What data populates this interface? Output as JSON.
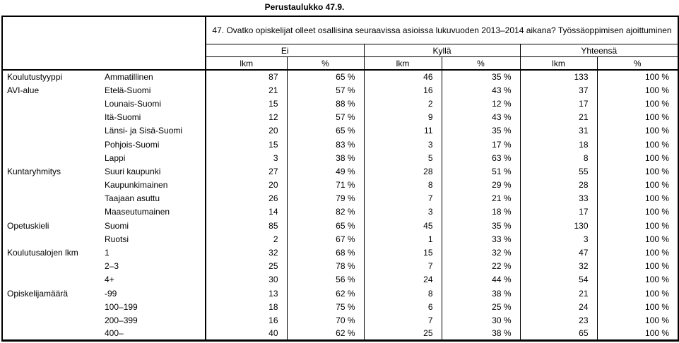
{
  "page_title": "Perustaulukko 47.9.",
  "table": {
    "question": "47. Ovatko opiskelijat olleet osallisina seuraavissa asioissa lukuvuoden 2013–2014 aikana? Työssäoppimisen ajoittuminen",
    "column_groups": [
      {
        "label": "Ei"
      },
      {
        "label": "Kyllä"
      },
      {
        "label": "Yhteensä"
      }
    ],
    "sub_columns": [
      "lkm",
      "%"
    ],
    "rows": [
      {
        "category": "Koulutustyyppi",
        "label": "Ammatillinen",
        "ei_lkm": "87",
        "ei_pct": "65 %",
        "kylla_lkm": "46",
        "kylla_pct": "35 %",
        "yht_lkm": "133",
        "yht_pct": "100 %"
      },
      {
        "category": "AVI-alue",
        "label": "Etelä-Suomi",
        "ei_lkm": "21",
        "ei_pct": "57 %",
        "kylla_lkm": "16",
        "kylla_pct": "43 %",
        "yht_lkm": "37",
        "yht_pct": "100 %"
      },
      {
        "category": "",
        "label": "Lounais-Suomi",
        "ei_lkm": "15",
        "ei_pct": "88 %",
        "kylla_lkm": "2",
        "kylla_pct": "12 %",
        "yht_lkm": "17",
        "yht_pct": "100 %"
      },
      {
        "category": "",
        "label": "Itä-Suomi",
        "ei_lkm": "12",
        "ei_pct": "57 %",
        "kylla_lkm": "9",
        "kylla_pct": "43 %",
        "yht_lkm": "21",
        "yht_pct": "100 %"
      },
      {
        "category": "",
        "label": "Länsi- ja Sisä-Suomi",
        "ei_lkm": "20",
        "ei_pct": "65 %",
        "kylla_lkm": "11",
        "kylla_pct": "35 %",
        "yht_lkm": "31",
        "yht_pct": "100 %"
      },
      {
        "category": "",
        "label": "Pohjois-Suomi",
        "ei_lkm": "15",
        "ei_pct": "83 %",
        "kylla_lkm": "3",
        "kylla_pct": "17 %",
        "yht_lkm": "18",
        "yht_pct": "100 %"
      },
      {
        "category": "",
        "label": "Lappi",
        "ei_lkm": "3",
        "ei_pct": "38 %",
        "kylla_lkm": "5",
        "kylla_pct": "63 %",
        "yht_lkm": "8",
        "yht_pct": "100 %"
      },
      {
        "category": "Kuntaryhmitys",
        "label": "Suuri kaupunki",
        "ei_lkm": "27",
        "ei_pct": "49 %",
        "kylla_lkm": "28",
        "kylla_pct": "51 %",
        "yht_lkm": "55",
        "yht_pct": "100 %"
      },
      {
        "category": "",
        "label": "Kaupunkimainen",
        "ei_lkm": "20",
        "ei_pct": "71 %",
        "kylla_lkm": "8",
        "kylla_pct": "29 %",
        "yht_lkm": "28",
        "yht_pct": "100 %"
      },
      {
        "category": "",
        "label": "Taajaan asuttu",
        "ei_lkm": "26",
        "ei_pct": "79 %",
        "kylla_lkm": "7",
        "kylla_pct": "21 %",
        "yht_lkm": "33",
        "yht_pct": "100 %"
      },
      {
        "category": "",
        "label": "Maaseutumainen",
        "ei_lkm": "14",
        "ei_pct": "82 %",
        "kylla_lkm": "3",
        "kylla_pct": "18 %",
        "yht_lkm": "17",
        "yht_pct": "100 %"
      },
      {
        "category": "Opetuskieli",
        "label": "Suomi",
        "ei_lkm": "85",
        "ei_pct": "65 %",
        "kylla_lkm": "45",
        "kylla_pct": "35 %",
        "yht_lkm": "130",
        "yht_pct": "100 %"
      },
      {
        "category": "",
        "label": "Ruotsi",
        "ei_lkm": "2",
        "ei_pct": "67 %",
        "kylla_lkm": "1",
        "kylla_pct": "33 %",
        "yht_lkm": "3",
        "yht_pct": "100 %"
      },
      {
        "category": "Koulutusalojen lkm",
        "label": "1",
        "ei_lkm": "32",
        "ei_pct": "68 %",
        "kylla_lkm": "15",
        "kylla_pct": "32 %",
        "yht_lkm": "47",
        "yht_pct": "100 %"
      },
      {
        "category": "",
        "label": "2–3",
        "ei_lkm": "25",
        "ei_pct": "78 %",
        "kylla_lkm": "7",
        "kylla_pct": "22 %",
        "yht_lkm": "32",
        "yht_pct": "100 %"
      },
      {
        "category": "",
        "label": "4+",
        "ei_lkm": "30",
        "ei_pct": "56 %",
        "kylla_lkm": "24",
        "kylla_pct": "44 %",
        "yht_lkm": "54",
        "yht_pct": "100 %"
      },
      {
        "category": "Opiskelijamäärä",
        "label": "-99",
        "ei_lkm": "13",
        "ei_pct": "62 %",
        "kylla_lkm": "8",
        "kylla_pct": "38 %",
        "yht_lkm": "21",
        "yht_pct": "100 %"
      },
      {
        "category": "",
        "label": "100–199",
        "ei_lkm": "18",
        "ei_pct": "75 %",
        "kylla_lkm": "6",
        "kylla_pct": "25 %",
        "yht_lkm": "24",
        "yht_pct": "100 %"
      },
      {
        "category": "",
        "label": "200–399",
        "ei_lkm": "16",
        "ei_pct": "70 %",
        "kylla_lkm": "7",
        "kylla_pct": "30 %",
        "yht_lkm": "23",
        "yht_pct": "100 %"
      },
      {
        "category": "",
        "label": "400–",
        "ei_lkm": "40",
        "ei_pct": "62 %",
        "kylla_lkm": "25",
        "kylla_pct": "38 %",
        "yht_lkm": "65",
        "yht_pct": "100 %"
      }
    ]
  }
}
